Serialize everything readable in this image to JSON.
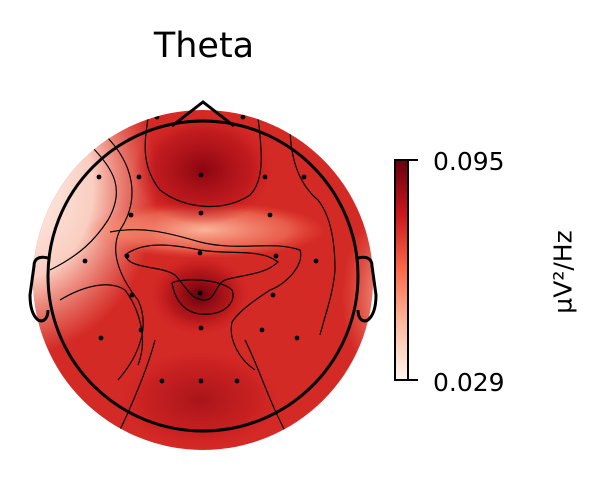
{
  "chart_data": {
    "type": "heatmap",
    "subtype": "eeg-topomap",
    "title": "Theta",
    "colorbar": {
      "label": "µV²/Hz",
      "min": 0.029,
      "max": 0.095,
      "ticks": [
        "0.095",
        "0.029"
      ],
      "colormap": "Reds"
    },
    "grid": false,
    "legend": "none"
  },
  "colors": {
    "low": "#fff5f0",
    "high": "#67000d"
  }
}
